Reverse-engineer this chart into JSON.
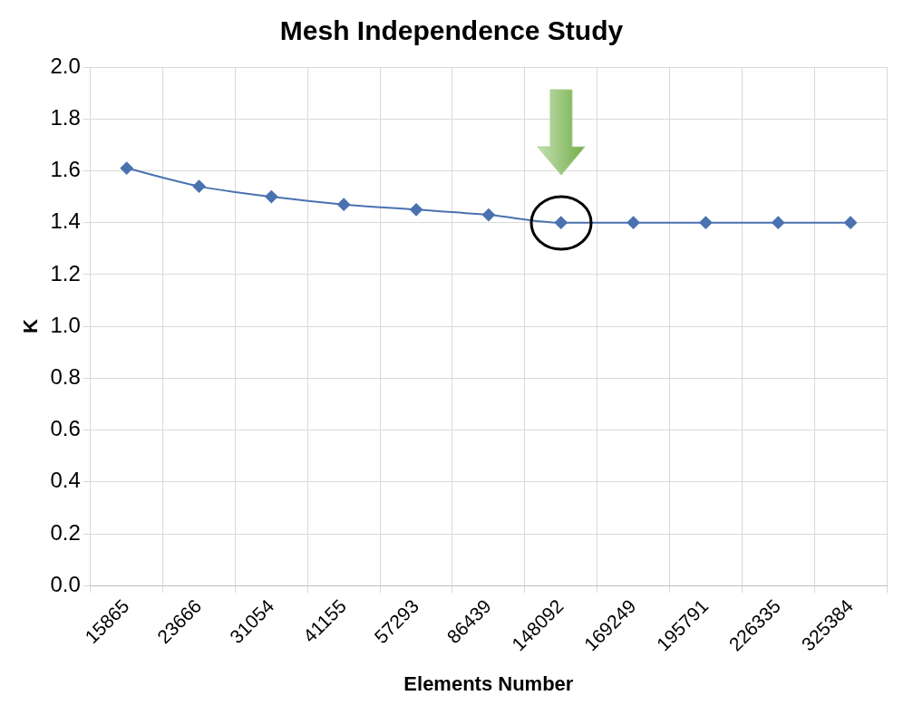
{
  "chart_data": {
    "type": "line",
    "title": "Mesh Independence Study",
    "xlabel": "Elements Number",
    "ylabel": "K",
    "categories": [
      "15865",
      "23666",
      "31054",
      "41155",
      "57293",
      "86439",
      "148092",
      "169249",
      "195791",
      "226335",
      "325384"
    ],
    "series": [
      {
        "color": "#4a72b0",
        "values": [
          1.61,
          1.54,
          1.5,
          1.47,
          1.45,
          1.43,
          1.4,
          1.4,
          1.4,
          1.4,
          1.4
        ]
      }
    ],
    "ylim": [
      0,
      2
    ],
    "yticks": [
      {
        "value": 0,
        "label": "0.0"
      },
      0.2,
      0.4,
      0.6,
      0.8,
      {
        "value": 1,
        "label": "1.0"
      },
      1.2,
      1.4,
      1.6,
      1.8,
      {
        "value": 2,
        "label": "2.0"
      }
    ],
    "grid": true,
    "legend": false,
    "marker": "diamond",
    "line_style": "solid"
  }
}
